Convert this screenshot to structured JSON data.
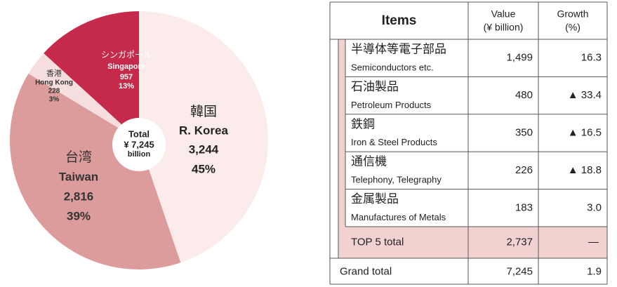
{
  "chart_data": {
    "type": "pie",
    "categories": [
      "R. Korea",
      "Taiwan",
      "Hong Kong",
      "Singapore"
    ],
    "labels_ja": [
      "韓国",
      "台湾",
      "香港",
      "シンガポール"
    ],
    "values": [
      3244,
      2816,
      228,
      957
    ],
    "value_labels": [
      "3,244",
      "2,816",
      "228",
      "957"
    ],
    "percent_labels": [
      "45%",
      "39%",
      "3%",
      "13%"
    ],
    "colors": [
      "#fbeceb",
      "#dc9c9c",
      "#f6dede",
      "#c62a4b"
    ],
    "center_label": [
      "Total",
      "¥ 7,245",
      "billion"
    ]
  },
  "table": {
    "header": {
      "items": "Items",
      "value": [
        "Value",
        "(¥ billion)"
      ],
      "growth": [
        "Growth",
        "(%)"
      ]
    },
    "rows": [
      {
        "ja": "半導体等電子部品",
        "en": "Semiconductors etc.",
        "value": "1,499",
        "growth": "16.3"
      },
      {
        "ja": "石油製品",
        "en": "Petroleum Products",
        "value": "480",
        "growth": "▲ 33.4"
      },
      {
        "ja": "鉄鋼",
        "en": "Iron & Steel Products",
        "value": "350",
        "growth": "▲ 16.5"
      },
      {
        "ja": "通信機",
        "en": "Telephony, Telegraphy",
        "value": "226",
        "growth": "▲ 18.8"
      },
      {
        "ja": "金属製品",
        "en": "Manufactures of Metals",
        "value": "183",
        "growth": "3.0"
      }
    ],
    "top5": {
      "label": "TOP 5 total",
      "value": "2,737",
      "growth": "—"
    },
    "grand": {
      "label": "Grand total",
      "value": "7,245",
      "growth": "1.9"
    }
  }
}
